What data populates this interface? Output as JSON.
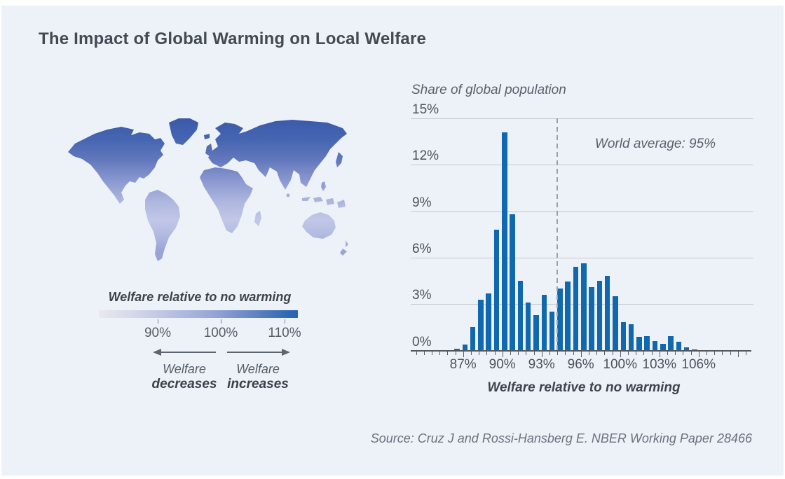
{
  "header": {
    "title": "The Impact of Global Warming on Local Welfare"
  },
  "legend": {
    "title": "Welfare relative to no warming",
    "tick_labels": [
      "90%",
      "100%",
      "110%"
    ],
    "decrease_label": {
      "line1": "Welfare",
      "line2": "decreases"
    },
    "increase_label": {
      "line1": "Welfare",
      "line2": "increases"
    }
  },
  "chart_data": {
    "type": "bar",
    "title": "Share of global population",
    "xlabel": "Welfare relative to no warming",
    "ylabel": "",
    "annotation": "World average: 95%",
    "x_tick_labels": [
      "87%",
      "90%",
      "93%",
      "96%",
      "100%",
      "103%",
      "106%"
    ],
    "y_tick_labels": [
      "0%",
      "3%",
      "6%",
      "9%",
      "12%",
      "15%"
    ],
    "ylim": [
      0,
      15
    ],
    "grid": true,
    "values": [
      0.1,
      0.4,
      1.5,
      3.3,
      3.7,
      7.8,
      14.1,
      8.8,
      4.5,
      3.1,
      2.3,
      3.6,
      2.5,
      4.0,
      4.45,
      5.4,
      5.65,
      4.1,
      4.5,
      4.8,
      3.5,
      1.85,
      1.7,
      0.9,
      0.95,
      0.6,
      0.45,
      0.95,
      0.55,
      0.2,
      0.06,
      0.02
    ],
    "world_average_line_after_bar_index": 12,
    "legend_position": "none"
  },
  "source": {
    "text": "Source: Cruz J and Rossi-Hansberg E. NBER Working Paper 28466"
  },
  "colors": {
    "background": "#edf2f8",
    "bar_blue": "#1068ae",
    "map_dark_blue": "#3b58a9",
    "map_light_lavender": "#c2c7e7",
    "colorbar_left": "#e9e9ec",
    "colorbar_right": "#2765b2"
  }
}
